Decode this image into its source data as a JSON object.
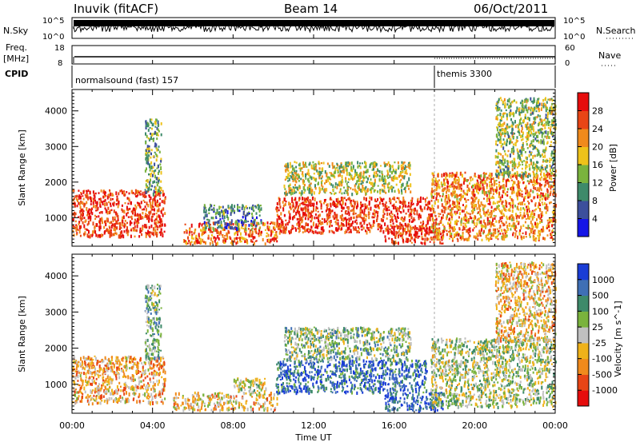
{
  "header": {
    "site": "Inuvik (fitACF)",
    "beam": "Beam 14",
    "date": "06/Oct/2011"
  },
  "top_panels": {
    "nsky_label": "N.Sky",
    "nsky_tick_top": "10^5",
    "nsky_tick_bottom": "10^0",
    "nsearch_label": "N.Search",
    "nsearch_tick_top": "10^5",
    "nsearch_tick_bottom": "10^0",
    "freq_label_1": "Freq.",
    "freq_label_2": "[MHz]",
    "freq_tick_top": "18",
    "freq_tick_bottom": "8",
    "nave_label": "Nave",
    "nave_tick_top": "60",
    "nave_tick_bottom": "0",
    "cpid_label": "CPID",
    "cpid_1": "normalsound (fast) 157",
    "cpid_2": "themis 3300"
  },
  "chart_data": [
    {
      "type": "heatmap",
      "name": "power",
      "ylabel": "Slant Range [km]",
      "xlabel": "Time UT",
      "x_ticks": [
        "00:00",
        "04:00",
        "08:00",
        "12:00",
        "16:00",
        "20:00",
        "00:00"
      ],
      "y_ticks": [
        1000,
        2000,
        3000,
        4000
      ],
      "ylim": [
        200,
        4600
      ],
      "colorbar_label": "Power [dB]",
      "colorbar_ticks": [
        4,
        8,
        12,
        16,
        20,
        24,
        28
      ],
      "colorbar_range": [
        0,
        32
      ],
      "colors": [
        "#1515e6",
        "#3c4f9c",
        "#3e8a6a",
        "#7ab33d",
        "#eec21a",
        "#f08a1c",
        "#e84515",
        "#e60c0c"
      ],
      "regions": [
        {
          "t0": 0.0,
          "t1": 4.6,
          "r0": 500,
          "r1": 1800,
          "level": 0.85
        },
        {
          "t0": 3.6,
          "t1": 4.4,
          "r0": 1700,
          "r1": 3800,
          "level": 0.4
        },
        {
          "t0": 5.5,
          "t1": 10.2,
          "r0": 300,
          "r1": 900,
          "level": 0.75
        },
        {
          "t0": 6.5,
          "t1": 9.4,
          "r0": 700,
          "r1": 1400,
          "level": 0.3
        },
        {
          "t0": 10.1,
          "t1": 17.8,
          "r0": 600,
          "r1": 1600,
          "level": 0.85
        },
        {
          "t0": 10.5,
          "t1": 16.8,
          "r0": 1700,
          "r1": 2600,
          "level": 0.5
        },
        {
          "t0": 15.5,
          "t1": 18.4,
          "r0": 300,
          "r1": 800,
          "level": 0.85
        },
        {
          "t0": 17.8,
          "t1": 24.0,
          "r0": 400,
          "r1": 2300,
          "level": 0.7
        },
        {
          "t0": 21.0,
          "t1": 24.0,
          "r0": 2200,
          "r1": 4400,
          "level": 0.45
        }
      ]
    },
    {
      "type": "heatmap",
      "name": "velocity",
      "ylabel": "Slant Range [km]",
      "xlabel": "Time UT",
      "x_ticks": [
        "00:00",
        "04:00",
        "08:00",
        "12:00",
        "16:00",
        "20:00",
        "00:00"
      ],
      "y_ticks": [
        1000,
        2000,
        3000,
        4000
      ],
      "ylim": [
        200,
        4600
      ],
      "colorbar_label": "Velocity [m s^-1]",
      "colorbar_ticks": [
        1000,
        500,
        100,
        25,
        -25,
        -100,
        -500,
        -1000
      ],
      "colors": [
        "#1a3dd6",
        "#3f6fb5",
        "#3e8a6a",
        "#7ab33d",
        "#c0c0c0",
        "#efb21a",
        "#f08a1c",
        "#e84515",
        "#e60c0c"
      ],
      "regions": [
        {
          "t0": 0.0,
          "t1": 4.6,
          "r0": 500,
          "r1": 1800,
          "level": 0.65
        },
        {
          "t0": 3.6,
          "t1": 4.4,
          "r0": 1700,
          "r1": 3800,
          "level": 0.35
        },
        {
          "t0": 5.0,
          "t1": 10.2,
          "r0": 300,
          "r1": 800,
          "level": 0.6
        },
        {
          "t0": 8.0,
          "t1": 9.6,
          "r0": 800,
          "r1": 1200,
          "level": 0.5
        },
        {
          "t0": 10.1,
          "t1": 17.6,
          "r0": 800,
          "r1": 1700,
          "level": 0.15
        },
        {
          "t0": 10.5,
          "t1": 16.8,
          "r0": 1700,
          "r1": 2600,
          "level": 0.4
        },
        {
          "t0": 15.5,
          "t1": 18.4,
          "r0": 300,
          "r1": 800,
          "level": 0.1
        },
        {
          "t0": 17.8,
          "t1": 24.0,
          "r0": 400,
          "r1": 2300,
          "level": 0.45
        },
        {
          "t0": 21.0,
          "t1": 24.0,
          "r0": 2200,
          "r1": 4400,
          "level": 0.6
        }
      ]
    }
  ]
}
